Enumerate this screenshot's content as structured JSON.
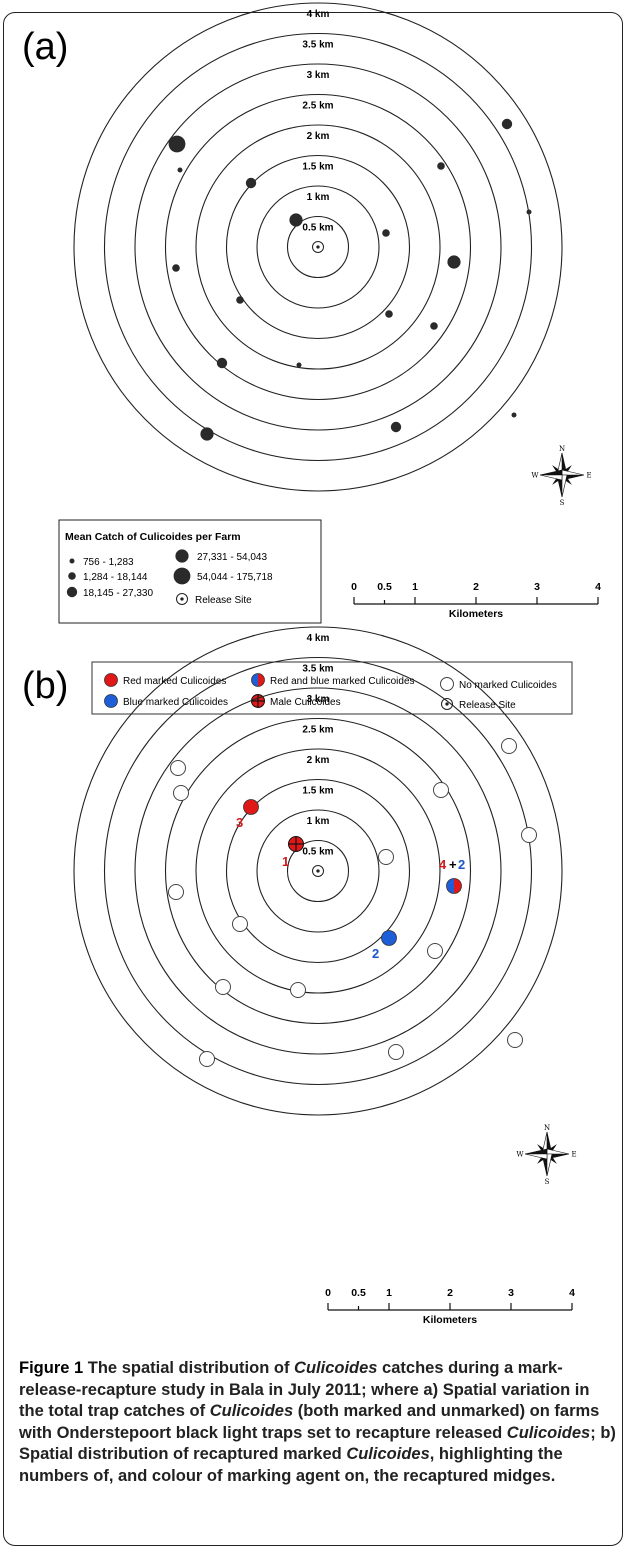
{
  "panel_a": {
    "label": "(a)",
    "rings": [
      "0.5 km",
      "1 km",
      "1.5 km",
      "2 km",
      "2.5 km",
      "3 km",
      "3.5 km",
      "4 km"
    ],
    "legend": {
      "title": "Mean Catch of Culicoides per Farm",
      "classes": [
        "756 - 1,283",
        "1,284 - 18,144",
        "18,145 - 27,330",
        "27,331 - 54,043",
        "54,044 - 175,718"
      ],
      "release": "Release Site"
    },
    "scale": {
      "ticks": [
        "0",
        "0.5",
        "1",
        "2",
        "3",
        "4"
      ],
      "unit": "Kilometers"
    },
    "farms": [
      {
        "x": -141,
        "y": -103,
        "cls": 4
      },
      {
        "x": -138,
        "y": -77,
        "cls": 0
      },
      {
        "x": -67,
        "y": -64,
        "cls": 2
      },
      {
        "x": -22,
        "y": -27,
        "cls": 3
      },
      {
        "x": 68,
        "y": -14,
        "cls": 1
      },
      {
        "x": 123,
        "y": -81,
        "cls": 1
      },
      {
        "x": 189,
        "y": -123,
        "cls": 2
      },
      {
        "x": 211,
        "y": -35,
        "cls": 0
      },
      {
        "x": 136,
        "y": 15,
        "cls": 3
      },
      {
        "x": -142,
        "y": 21,
        "cls": 1
      },
      {
        "x": -78,
        "y": 53,
        "cls": 1
      },
      {
        "x": 71,
        "y": 67,
        "cls": 1
      },
      {
        "x": 116,
        "y": 79,
        "cls": 1
      },
      {
        "x": -96,
        "y": 116,
        "cls": 2
      },
      {
        "x": -19,
        "y": 118,
        "cls": 0
      },
      {
        "x": 78,
        "y": 180,
        "cls": 2
      },
      {
        "x": -111,
        "y": 187,
        "cls": 3
      },
      {
        "x": 196,
        "y": 168,
        "cls": 0
      }
    ],
    "compass": {
      "n": "N",
      "s": "S",
      "e": "E",
      "w": "W"
    }
  },
  "panel_b": {
    "label": "(b)",
    "rings": [
      "0.5 km",
      "1 km",
      "1.5 km",
      "2 km",
      "2.5 km",
      "3 km",
      "3.5 km",
      "4 km"
    ],
    "legend": {
      "red": "Red marked Culicoides",
      "blue": "Blue marked Culicoides",
      "redblue": "Red and blue marked Culicoides",
      "male": "Male Culicoides",
      "none": "No marked Culicoides",
      "release": "Release Site"
    },
    "scale": {
      "ticks": [
        "0",
        "0.5",
        "1",
        "2",
        "3",
        "4"
      ],
      "unit": "Kilometers"
    },
    "traps": [
      {
        "x": -140,
        "y": -103,
        "type": "none"
      },
      {
        "x": -137,
        "y": -78,
        "type": "none"
      },
      {
        "x": -67,
        "y": -64,
        "type": "red"
      },
      {
        "x": -22,
        "y": -27,
        "type": "male"
      },
      {
        "x": 68,
        "y": -14,
        "type": "none"
      },
      {
        "x": 123,
        "y": -81,
        "type": "none"
      },
      {
        "x": 191,
        "y": -125,
        "type": "none"
      },
      {
        "x": 211,
        "y": -36,
        "type": "none"
      },
      {
        "x": 136,
        "y": 15,
        "type": "redblue"
      },
      {
        "x": -142,
        "y": 21,
        "type": "none"
      },
      {
        "x": -78,
        "y": 53,
        "type": "none"
      },
      {
        "x": 71,
        "y": 67,
        "type": "blue"
      },
      {
        "x": 117,
        "y": 80,
        "type": "none"
      },
      {
        "x": -95,
        "y": 116,
        "type": "none"
      },
      {
        "x": -20,
        "y": 119,
        "type": "none"
      },
      {
        "x": 78,
        "y": 181,
        "type": "none"
      },
      {
        "x": -111,
        "y": 188,
        "type": "none"
      },
      {
        "x": 197,
        "y": 169,
        "type": "none"
      }
    ],
    "counts": [
      {
        "text": "3",
        "color": "#d11a1a",
        "x": -82,
        "y": -44
      },
      {
        "text": "1",
        "color": "#d11a1a",
        "x": -36,
        "y": -5
      },
      {
        "text": "2",
        "color": "#1a56c8",
        "x": 54,
        "y": 87
      },
      {
        "text": "4",
        "color": "#d11a1a",
        "x": 121,
        "y": -2
      },
      {
        "text": "+",
        "color": "#000000",
        "x": 131,
        "y": -2
      },
      {
        "text": "2",
        "color": "#1a56c8",
        "x": 140,
        "y": -2
      }
    ],
    "compass": {
      "n": "N",
      "s": "S",
      "e": "E",
      "w": "W"
    }
  },
  "caption": {
    "fig_num": "Figure 1",
    "p1": " The spatial distribution of ",
    "i1": "Culicoides",
    "p2": " catches during a mark-release-recapture study in Bala in July 2011; where a) Spatial variation in the total trap catches of ",
    "i2": "Culicoides",
    "p3": " (both marked and unmarked) on farms with Onderstepoort black light traps set to recapture released ",
    "i3": "Culicoides",
    "p4": "; b) Spatial distribution of recaptured marked ",
    "i4": "Culicoides",
    "p5": ", highlighting the numbers of, and colour of marking agent on, the recaptured midges."
  },
  "colors": {
    "red": "#e01818",
    "blue": "#1e5ed8",
    "dot": "#2a2a2a"
  }
}
